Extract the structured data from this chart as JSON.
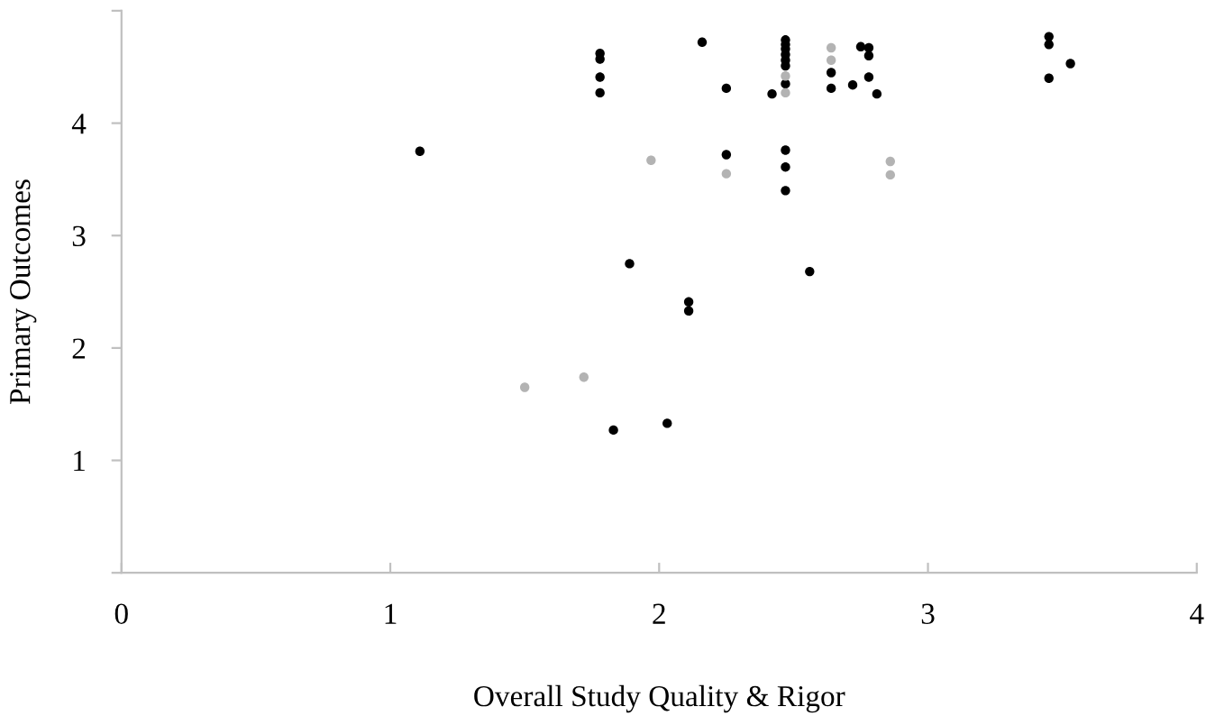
{
  "chart_data": {
    "type": "scatter",
    "xlabel": "Overall Study Quality & Rigor",
    "ylabel": "Primary Outcomes",
    "xlim": [
      0,
      4
    ],
    "xticks": [
      0,
      1,
      2,
      3,
      4
    ],
    "ylim": [
      0,
      5
    ],
    "yticks": [
      {
        "value": 0,
        "label": null
      },
      1,
      2,
      3,
      4,
      {
        "value": 5,
        "label": null
      }
    ],
    "grid": false,
    "legend": false,
    "marker": "circle",
    "series": [
      {
        "color": "#000000",
        "x": [
          1.11,
          1.78,
          1.78,
          1.78,
          1.78,
          1.83,
          2.03,
          2.16,
          2.25,
          2.42,
          2.47,
          2.47,
          2.47,
          2.47,
          2.47,
          2.47,
          2.47,
          2.47,
          2.47,
          2.47,
          2.64,
          2.64,
          2.75,
          2.78,
          2.78,
          2.78,
          2.72,
          2.81,
          2.25,
          1.89,
          2.11,
          2.11,
          2.56,
          3.45,
          3.45,
          3.45,
          3.53
        ],
        "values": [
          3.75,
          4.62,
          4.57,
          4.41,
          4.27,
          1.27,
          1.33,
          4.72,
          4.31,
          4.26,
          4.74,
          4.7,
          4.66,
          4.61,
          4.56,
          4.51,
          4.35,
          3.76,
          3.61,
          3.4,
          4.45,
          4.31,
          4.68,
          4.67,
          4.6,
          4.41,
          4.34,
          4.26,
          3.72,
          2.75,
          2.41,
          2.33,
          2.68,
          4.77,
          4.7,
          4.4,
          4.53
        ]
      },
      {
        "color": "#b3b3b3",
        "x": [
          1.5,
          1.72,
          2.47,
          2.47,
          2.64,
          2.64,
          1.97,
          2.25,
          2.86,
          2.86
        ],
        "values": [
          1.65,
          1.74,
          4.42,
          4.27,
          4.67,
          4.56,
          3.67,
          3.55,
          3.66,
          3.54
        ]
      }
    ]
  }
}
